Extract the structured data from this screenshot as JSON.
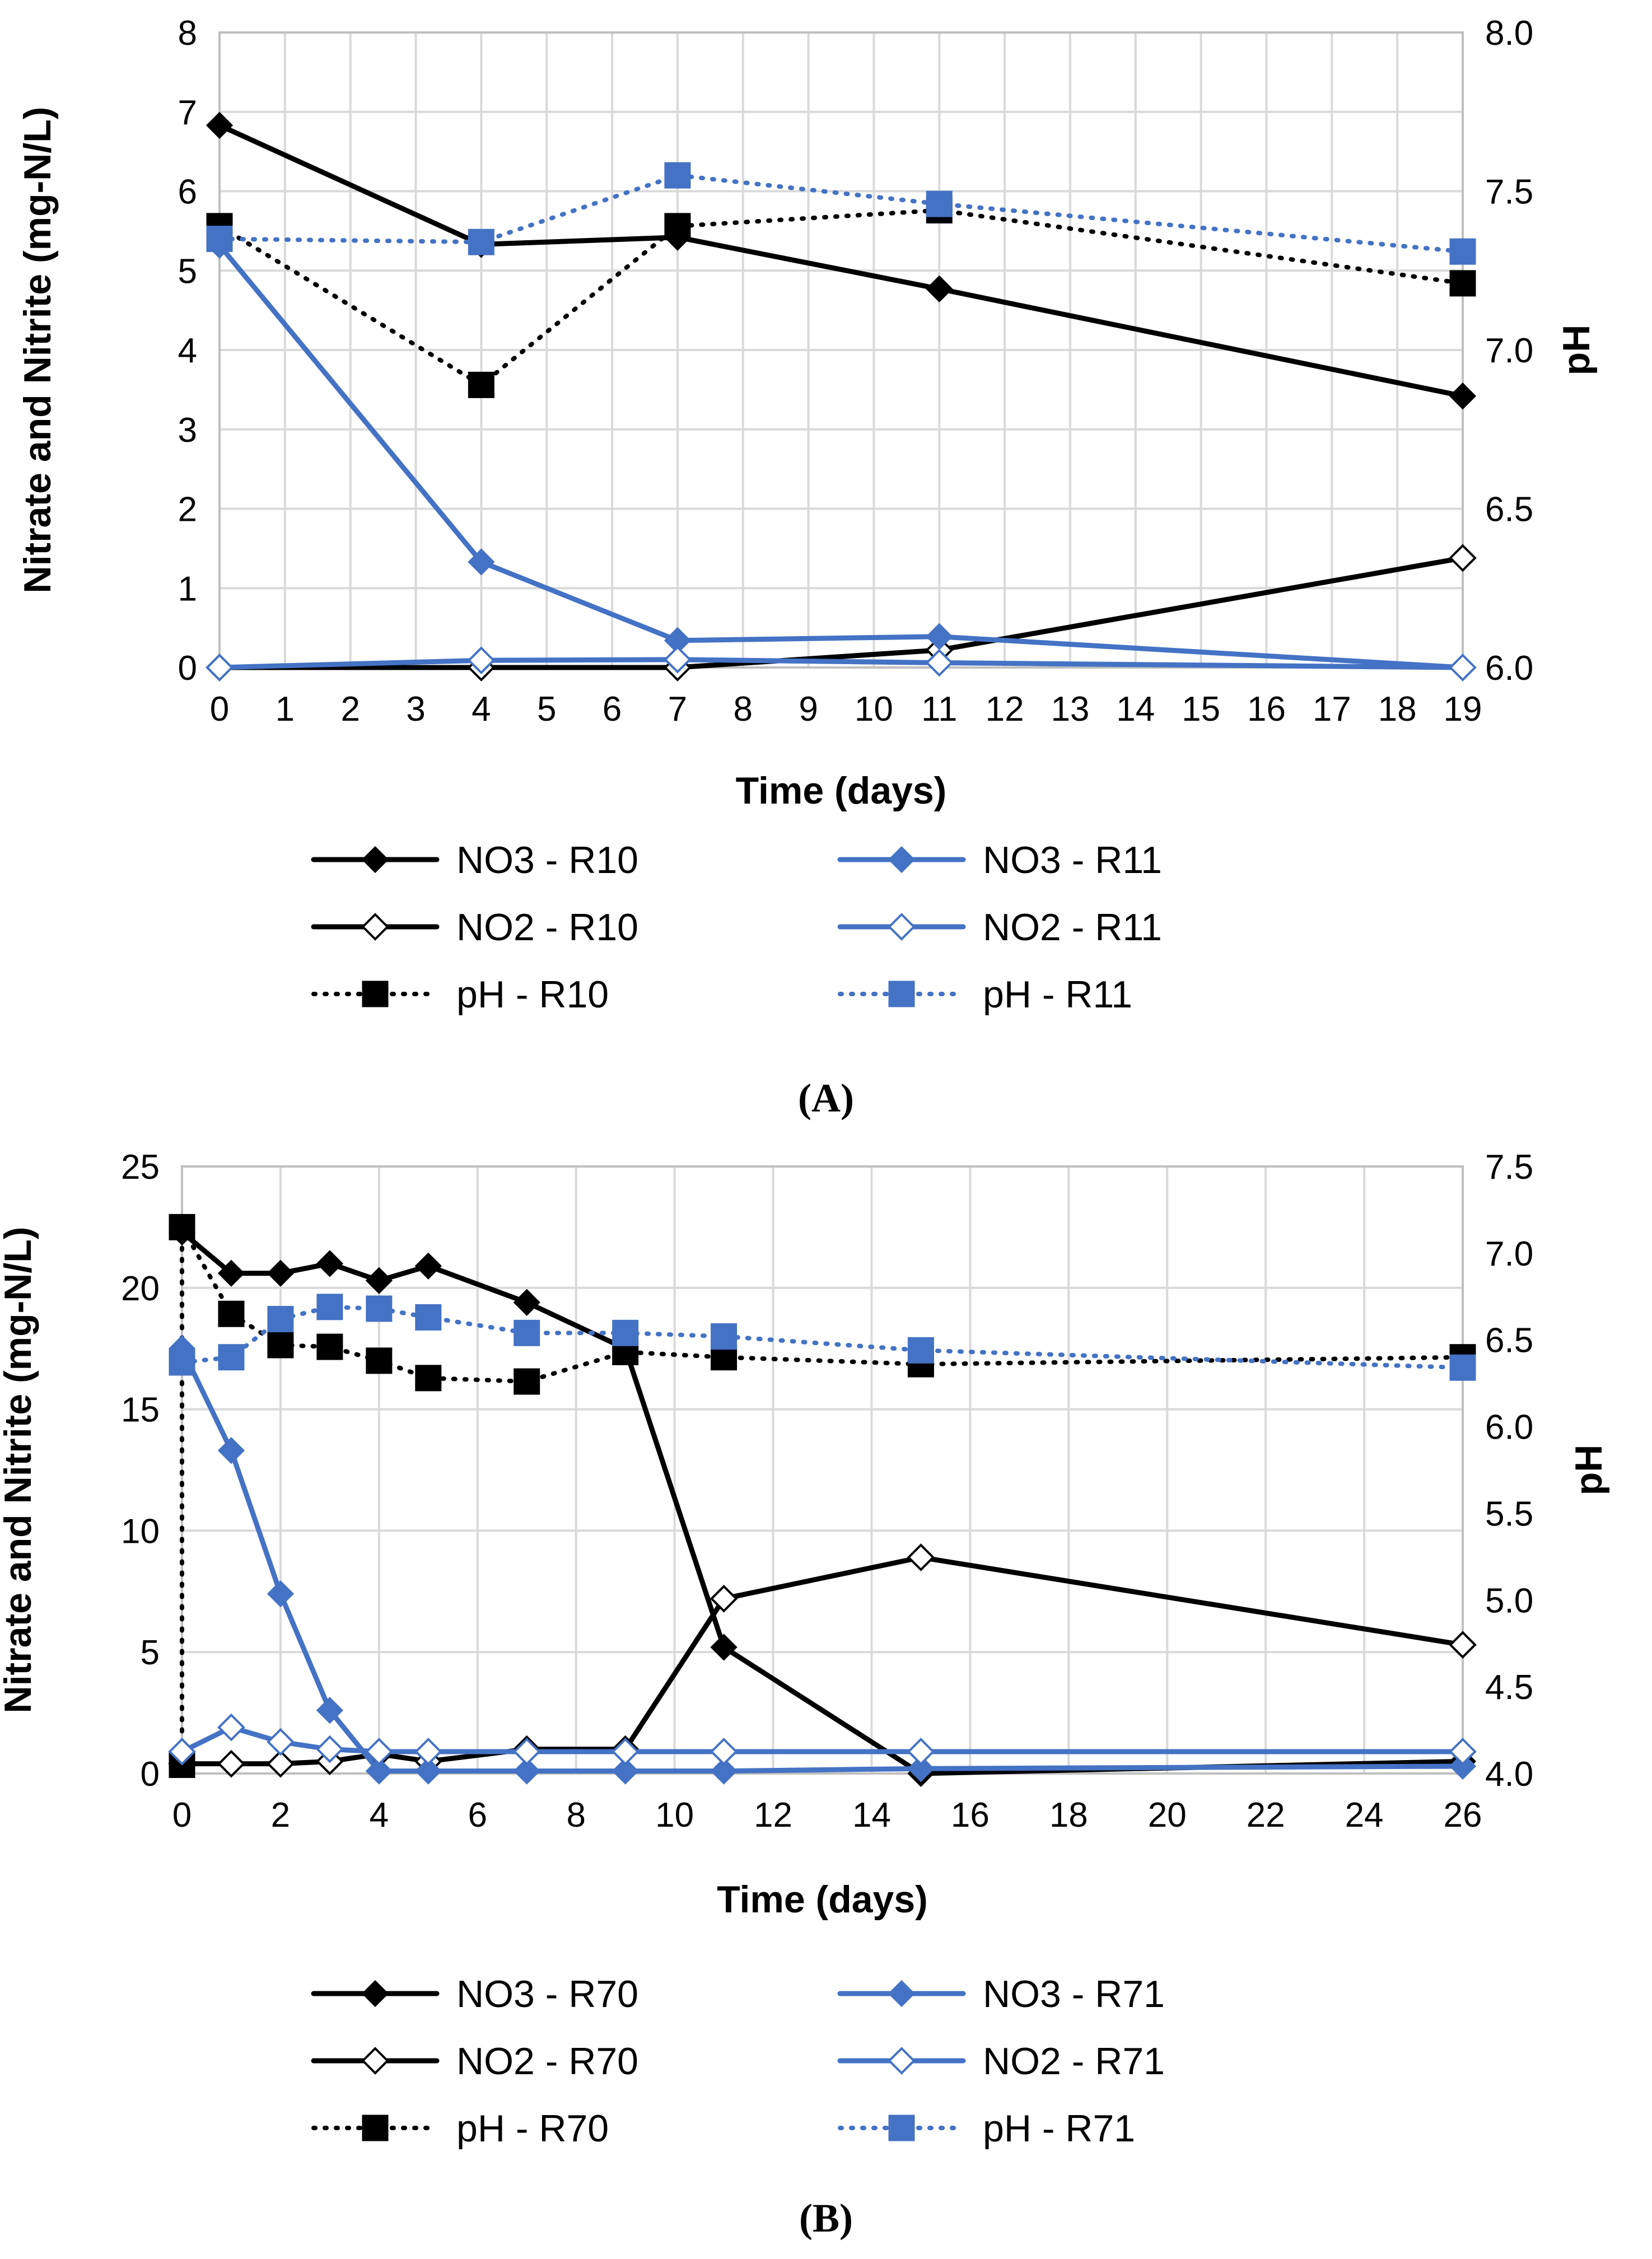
{
  "chart_data": [
    {
      "type": "line",
      "panel_label": "(A)",
      "xlabel": "Time (days)",
      "ylabel": "Nitrate and Nitrite (mg-N/L)",
      "y2label": "pH",
      "xlim": [
        0,
        19
      ],
      "ylim": [
        0,
        8
      ],
      "y2lim": [
        6.0,
        8.0
      ],
      "x_ticks": [
        "0",
        "1",
        "2",
        "3",
        "4",
        "5",
        "6",
        "7",
        "8",
        "9",
        "10",
        "11",
        "12",
        "13",
        "14",
        "15",
        "16",
        "17",
        "18",
        "19"
      ],
      "y_ticks": [
        "0",
        "1",
        "2",
        "3",
        "4",
        "5",
        "6",
        "7",
        "8"
      ],
      "y2_ticks": [
        "6.0",
        "6.5",
        "7.0",
        "7.5",
        "8.0"
      ],
      "grid": true,
      "series": [
        {
          "name": "NO3 - R10",
          "axis": "left",
          "color": "#000000",
          "dash": "solid",
          "marker": "diamond-filled",
          "x": [
            0,
            4,
            7,
            11,
            19
          ],
          "values": [
            6.83,
            5.33,
            5.42,
            4.77,
            3.42
          ]
        },
        {
          "name": "NO2 - R10",
          "axis": "left",
          "color": "#000000",
          "dash": "solid",
          "marker": "diamond-open",
          "x": [
            0,
            4,
            7,
            11,
            19
          ],
          "values": [
            0.0,
            0.0,
            0.0,
            0.22,
            1.38
          ]
        },
        {
          "name": "pH - R10",
          "axis": "right",
          "color": "#000000",
          "dash": "dotted",
          "marker": "square",
          "x": [
            0,
            4,
            7,
            11,
            19
          ],
          "values": [
            7.39,
            6.89,
            7.39,
            7.44,
            7.21
          ]
        },
        {
          "name": "NO3 - R11",
          "axis": "left",
          "color": "#4472c4",
          "dash": "solid",
          "marker": "diamond-filled",
          "x": [
            0,
            4,
            7,
            11,
            19
          ],
          "values": [
            5.32,
            1.33,
            0.34,
            0.39,
            0.0
          ]
        },
        {
          "name": "NO2 - R11",
          "axis": "left",
          "color": "#4472c4",
          "dash": "solid",
          "marker": "diamond-open",
          "x": [
            0,
            4,
            7,
            11,
            19
          ],
          "values": [
            0.0,
            0.09,
            0.1,
            0.06,
            0.0
          ]
        },
        {
          "name": "pH - R11",
          "axis": "right",
          "color": "#4472c4",
          "dash": "dotted",
          "marker": "square",
          "x": [
            0,
            4,
            7,
            11,
            19
          ],
          "values": [
            7.35,
            7.34,
            7.55,
            7.46,
            7.31
          ]
        }
      ]
    },
    {
      "type": "line",
      "panel_label": "(B)",
      "xlabel": "Time (days)",
      "ylabel": "Nitrate and Nitrite (mg-N/L)",
      "y2label": "pH",
      "xlim": [
        0,
        26
      ],
      "ylim": [
        0,
        25
      ],
      "y2lim": [
        4.0,
        7.5
      ],
      "x_ticks": [
        "0",
        "2",
        "4",
        "6",
        "8",
        "10",
        "12",
        "14",
        "16",
        "18",
        "20",
        "22",
        "24",
        "26"
      ],
      "y_ticks": [
        "0",
        "5",
        "10",
        "15",
        "20",
        "25"
      ],
      "y2_ticks": [
        "4.0",
        "4.5",
        "5.0",
        "5.5",
        "6.0",
        "6.5",
        "7.0",
        "7.5"
      ],
      "grid": true,
      "series": [
        {
          "name": "NO3 - R70",
          "axis": "left",
          "color": "#000000",
          "dash": "solid",
          "marker": "diamond-filled",
          "x": [
            0,
            1,
            2,
            3,
            4,
            5,
            7,
            9,
            11,
            15,
            26
          ],
          "values": [
            22.3,
            20.6,
            20.6,
            21.0,
            20.3,
            20.9,
            19.4,
            17.5,
            5.2,
            0.0,
            0.5
          ]
        },
        {
          "name": "NO2 - R70",
          "axis": "left",
          "color": "#000000",
          "dash": "solid",
          "marker": "diamond-open",
          "x": [
            0,
            1,
            2,
            3,
            4,
            5,
            7,
            9,
            11,
            15,
            26
          ],
          "values": [
            0.4,
            0.4,
            0.4,
            0.5,
            0.8,
            0.5,
            1.0,
            1.0,
            7.2,
            8.9,
            5.3
          ]
        },
        {
          "name": "pH - R70",
          "axis": "right",
          "color": "#000000",
          "dash": "dotted",
          "marker": "square",
          "x": [
            0,
            0,
            1,
            2,
            3,
            4,
            5,
            7,
            9,
            11,
            15,
            26
          ],
          "values": [
            4.05,
            7.15,
            6.65,
            6.47,
            6.46,
            6.38,
            6.28,
            6.26,
            6.43,
            6.4,
            6.36,
            6.4
          ]
        },
        {
          "name": "NO3 - R71",
          "axis": "left",
          "color": "#4472c4",
          "dash": "solid",
          "marker": "diamond-filled",
          "x": [
            0,
            1,
            2,
            3,
            4,
            5,
            7,
            9,
            11,
            15,
            26
          ],
          "values": [
            17.5,
            13.3,
            7.4,
            2.6,
            0.1,
            0.1,
            0.1,
            0.1,
            0.1,
            0.2,
            0.3
          ]
        },
        {
          "name": "NO2 - R71",
          "axis": "left",
          "color": "#4472c4",
          "dash": "solid",
          "marker": "diamond-open",
          "x": [
            0,
            1,
            2,
            3,
            4,
            5,
            7,
            9,
            11,
            15,
            26
          ],
          "values": [
            0.9,
            1.9,
            1.3,
            1.0,
            0.9,
            0.9,
            0.9,
            0.9,
            0.9,
            0.9,
            0.9
          ]
        },
        {
          "name": "pH - R71",
          "axis": "right",
          "color": "#4472c4",
          "dash": "dotted",
          "marker": "square",
          "x": [
            0,
            1,
            2,
            3,
            4,
            5,
            7,
            9,
            11,
            15,
            26
          ],
          "values": [
            6.37,
            6.4,
            6.62,
            6.69,
            6.68,
            6.63,
            6.54,
            6.54,
            6.52,
            6.44,
            6.34
          ]
        }
      ]
    }
  ]
}
